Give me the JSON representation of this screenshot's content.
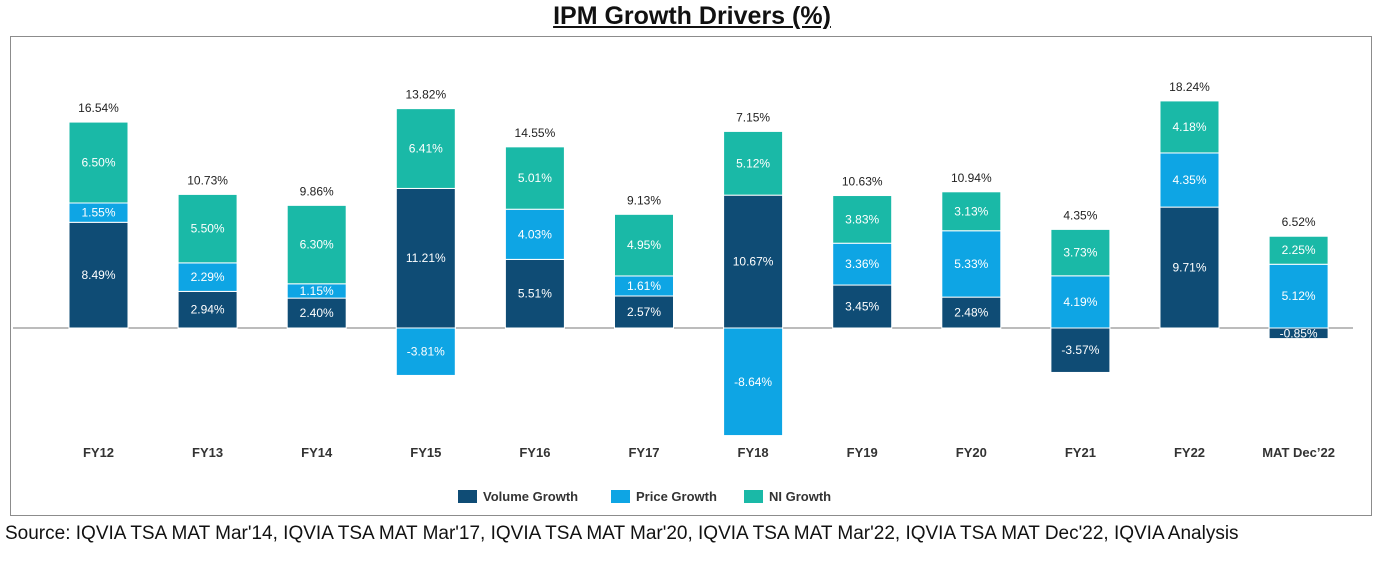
{
  "chart_data": {
    "type": "bar",
    "stacked": true,
    "title": "IPM Growth Drivers (%)",
    "categories": [
      "FY12",
      "FY13",
      "FY14",
      "FY15",
      "FY16",
      "FY17",
      "FY18",
      "FY19",
      "FY20",
      "FY21",
      "FY22",
      "MAT Dec’22"
    ],
    "series": [
      {
        "name": "Volume Growth",
        "color": "#0f4c75",
        "values": [
          8.49,
          2.94,
          2.4,
          11.21,
          5.51,
          2.57,
          10.67,
          3.45,
          2.48,
          -3.57,
          9.71,
          -0.85
        ],
        "labels": [
          "8.49%",
          "2.94%",
          "2.40%",
          "11.21%",
          "5.51%",
          "2.57%",
          "10.67%",
          "3.45%",
          "2.48%",
          "-3.57%",
          "9.71%",
          "-0.85%"
        ]
      },
      {
        "name": "Price Growth",
        "color": "#0ea5e4",
        "values": [
          1.55,
          2.29,
          1.15,
          -3.81,
          4.03,
          1.61,
          -8.64,
          3.36,
          5.33,
          4.19,
          4.35,
          5.12
        ],
        "labels": [
          "1.55%",
          "2.29%",
          "1.15%",
          "-3.81%",
          "4.03%",
          "1.61%",
          "-8.64%",
          "3.36%",
          "5.33%",
          "4.19%",
          "4.35%",
          "5.12%"
        ]
      },
      {
        "name": "NI Growth",
        "color": "#1ab9a7",
        "values": [
          6.5,
          5.5,
          6.3,
          6.41,
          5.01,
          4.95,
          5.12,
          3.83,
          3.13,
          3.73,
          4.18,
          2.25
        ],
        "labels": [
          "6.50%",
          "5.50%",
          "6.30%",
          "6.41%",
          "5.01%",
          "4.95%",
          "5.12%",
          "3.83%",
          "3.13%",
          "3.73%",
          "4.18%",
          "2.25%"
        ]
      }
    ],
    "totals": [
      16.54,
      10.73,
      9.86,
      13.82,
      14.55,
      9.13,
      7.15,
      10.63,
      10.94,
      4.35,
      18.24,
      6.52
    ],
    "total_labels": [
      "16.54%",
      "10.73%",
      "9.86%",
      "13.82%",
      "14.55%",
      "9.13%",
      "7.15%",
      "10.63%",
      "10.94%",
      "4.35%",
      "18.24%",
      "6.52%"
    ],
    "ylim": [
      -10.8,
      22.0
    ],
    "legend_position": "bottom",
    "grid": false
  },
  "source": "Source: IQVIA TSA MAT Mar'14, IQVIA TSA MAT Mar'17, IQVIA TSA MAT Mar'20, IQVIA TSA MAT Mar'22, IQVIA TSA MAT Dec'22, IQVIA Analysis"
}
